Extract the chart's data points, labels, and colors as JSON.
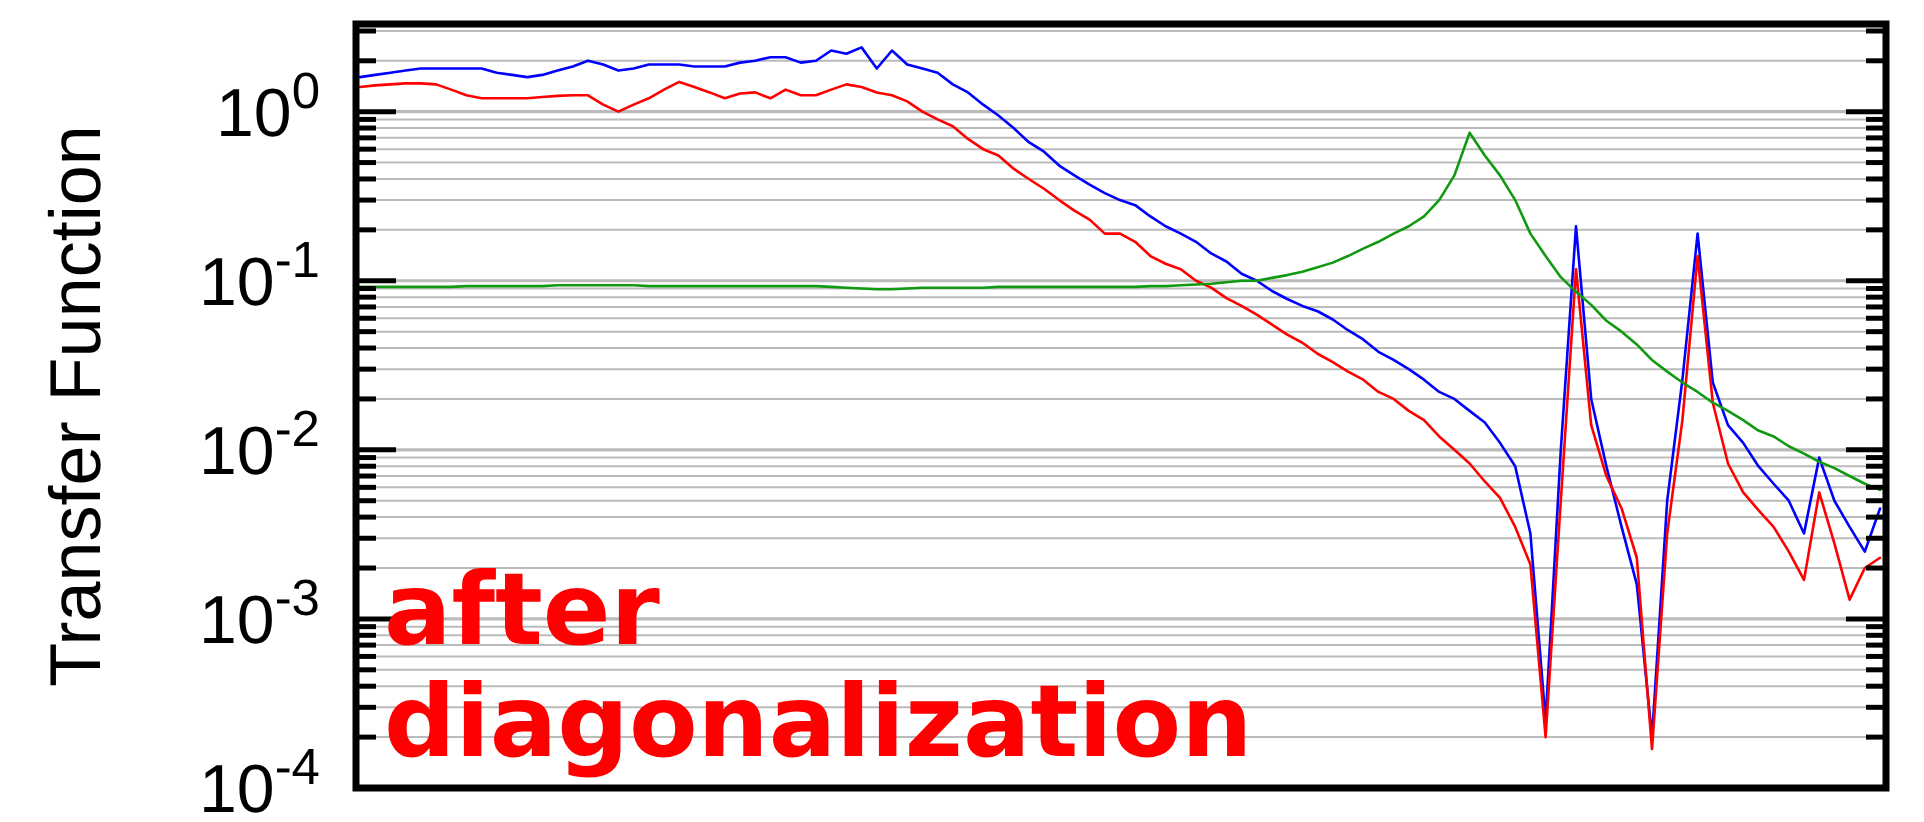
{
  "chart_data": {
    "type": "line",
    "ylabel": "Transfer Function",
    "annotations": [
      "after diagonalization"
    ],
    "categories": [
      null,
      null,
      null,
      null,
      null,
      null,
      null,
      null,
      null,
      null,
      null,
      null,
      null,
      null,
      null,
      null,
      null,
      null,
      null,
      null,
      null,
      null,
      null,
      null,
      null,
      null,
      null,
      null,
      null,
      null,
      null,
      null,
      null,
      null,
      null,
      null,
      null,
      null,
      null,
      null,
      null,
      null,
      null,
      null,
      null,
      null,
      null,
      null,
      null,
      null,
      null,
      null,
      null,
      null,
      null,
      null,
      null,
      null,
      null,
      null,
      null,
      null,
      null,
      null,
      null,
      null,
      null,
      null,
      null,
      null,
      null,
      null,
      null,
      null,
      null,
      null,
      null,
      null,
      null,
      null,
      null,
      null,
      null,
      null,
      null,
      null,
      null,
      null,
      null,
      null,
      null,
      null,
      null,
      null,
      null,
      null,
      null,
      null,
      null,
      null,
      null
    ],
    "log": "y",
    "grid": "y",
    "ylim": [
      0.0001,
      3.3
    ],
    "yticks": [
      {
        "value": 0.0001,
        "label": "10$^{-4}$"
      },
      {
        "value": 0.0002,
        "label": null
      },
      {
        "value": 0.0003,
        "label": null
      },
      {
        "value": 0.0004,
        "label": null
      },
      {
        "value": 0.0005,
        "label": null
      },
      {
        "value": 0.0006,
        "label": null
      },
      {
        "value": 0.0007,
        "label": null
      },
      {
        "value": 0.0008,
        "label": null
      },
      {
        "value": 0.0009,
        "label": null
      },
      {
        "value": 0.001,
        "label": "10$^{-3}$"
      },
      {
        "value": 0.002,
        "label": null
      },
      {
        "value": 0.003,
        "label": null
      },
      {
        "value": 0.004,
        "label": null
      },
      {
        "value": 0.005,
        "label": null
      },
      {
        "value": 0.006,
        "label": null
      },
      {
        "value": 0.007,
        "label": null
      },
      {
        "value": 0.008,
        "label": null
      },
      {
        "value": 0.009,
        "label": null
      },
      {
        "value": 0.01,
        "label": "10$^{-2}$"
      },
      {
        "value": 0.02,
        "label": null
      },
      {
        "value": 0.03,
        "label": null
      },
      {
        "value": 0.04,
        "label": null
      },
      {
        "value": 0.05,
        "label": null
      },
      {
        "value": 0.06,
        "label": null
      },
      {
        "value": 0.07,
        "label": null
      },
      {
        "value": 0.08,
        "label": null
      },
      {
        "value": 0.09,
        "label": null
      },
      {
        "value": 0.1,
        "label": "10$^{-1}$"
      },
      {
        "value": 0.2,
        "label": null
      },
      {
        "value": 0.3,
        "label": null
      },
      {
        "value": 0.4,
        "label": null
      },
      {
        "value": 0.5,
        "label": null
      },
      {
        "value": 0.6,
        "label": null
      },
      {
        "value": 0.7,
        "label": null
      },
      {
        "value": 0.8,
        "label": null
      },
      {
        "value": 0.9,
        "label": null
      },
      {
        "value": 1,
        "label": "10$^{0}$"
      },
      {
        "value": 2,
        "label": null
      },
      {
        "value": 3,
        "label": null
      }
    ],
    "series": [
      {
        "color": "#0000ff",
        "values": [
          1.6,
          1.65,
          1.7,
          1.75,
          1.8,
          1.8,
          1.8,
          1.8,
          1.8,
          1.7,
          1.65,
          1.6,
          1.65,
          1.75,
          1.85,
          2.0,
          1.9,
          1.75,
          1.8,
          1.9,
          1.9,
          1.9,
          1.85,
          1.85,
          1.85,
          1.95,
          2.0,
          2.1,
          2.1,
          1.95,
          2.0,
          2.3,
          2.2,
          2.4,
          1.8,
          2.3,
          1.9,
          1.8,
          1.7,
          1.45,
          1.3,
          1.1,
          0.95,
          0.8,
          0.66,
          0.58,
          0.48,
          0.42,
          0.37,
          0.33,
          0.3,
          0.28,
          0.24,
          0.21,
          0.19,
          0.17,
          0.145,
          0.13,
          0.11,
          0.1,
          0.087,
          0.078,
          0.071,
          0.066,
          0.059,
          0.051,
          0.045,
          0.038,
          0.034,
          0.03,
          0.026,
          0.022,
          0.02,
          0.017,
          0.0145,
          0.011,
          0.008,
          0.0032,
          0.00025,
          0.01,
          0.21,
          0.02,
          0.008,
          0.0035,
          0.0016,
          0.0002,
          0.005,
          0.026,
          0.19,
          0.025,
          0.014,
          0.011,
          0.008,
          0.0063,
          0.005,
          0.0032,
          0.009,
          0.005,
          0.0035,
          0.0025,
          0.0045
        ]
      },
      {
        "color": "#ff0000",
        "values": [
          1.4,
          1.43,
          1.45,
          1.47,
          1.47,
          1.45,
          1.35,
          1.25,
          1.2,
          1.2,
          1.2,
          1.2,
          1.22,
          1.24,
          1.25,
          1.25,
          1.1,
          1.0,
          1.1,
          1.2,
          1.35,
          1.5,
          1.4,
          1.3,
          1.2,
          1.28,
          1.3,
          1.2,
          1.35,
          1.25,
          1.25,
          1.35,
          1.45,
          1.4,
          1.3,
          1.25,
          1.15,
          1.0,
          0.9,
          0.82,
          0.69,
          0.6,
          0.55,
          0.46,
          0.4,
          0.35,
          0.3,
          0.26,
          0.23,
          0.19,
          0.19,
          0.17,
          0.14,
          0.126,
          0.117,
          0.1,
          0.091,
          0.079,
          0.071,
          0.063,
          0.055,
          0.048,
          0.043,
          0.037,
          0.033,
          0.029,
          0.026,
          0.022,
          0.02,
          0.017,
          0.015,
          0.012,
          0.01,
          0.0083,
          0.0065,
          0.0052,
          0.0035,
          0.0021,
          0.0002,
          0.005,
          0.117,
          0.014,
          0.007,
          0.0045,
          0.0023,
          0.00017,
          0.0032,
          0.015,
          0.14,
          0.019,
          0.0083,
          0.0056,
          0.0044,
          0.0035,
          0.0025,
          0.0017,
          0.0056,
          0.0028,
          0.0013,
          0.002,
          0.0023
        ]
      },
      {
        "color": "#119911",
        "values": [
          0.092,
          0.092,
          0.092,
          0.092,
          0.092,
          0.092,
          0.092,
          0.093,
          0.093,
          0.093,
          0.093,
          0.093,
          0.093,
          0.094,
          0.094,
          0.094,
          0.094,
          0.094,
          0.094,
          0.093,
          0.093,
          0.093,
          0.093,
          0.093,
          0.093,
          0.093,
          0.093,
          0.093,
          0.093,
          0.093,
          0.093,
          0.092,
          0.091,
          0.09,
          0.089,
          0.089,
          0.09,
          0.091,
          0.091,
          0.091,
          0.091,
          0.091,
          0.092,
          0.092,
          0.092,
          0.092,
          0.092,
          0.092,
          0.092,
          0.092,
          0.092,
          0.092,
          0.093,
          0.093,
          0.094,
          0.095,
          0.096,
          0.098,
          0.1,
          0.1,
          0.104,
          0.108,
          0.113,
          0.12,
          0.128,
          0.14,
          0.155,
          0.17,
          0.19,
          0.21,
          0.24,
          0.3,
          0.42,
          0.75,
          0.55,
          0.42,
          0.3,
          0.19,
          0.14,
          0.105,
          0.086,
          0.072,
          0.058,
          0.05,
          0.042,
          0.034,
          0.029,
          0.025,
          0.022,
          0.019,
          0.017,
          0.015,
          0.013,
          0.012,
          0.0105,
          0.0095,
          0.0085,
          0.0078,
          0.007,
          0.0063,
          0.0058
        ]
      }
    ]
  }
}
